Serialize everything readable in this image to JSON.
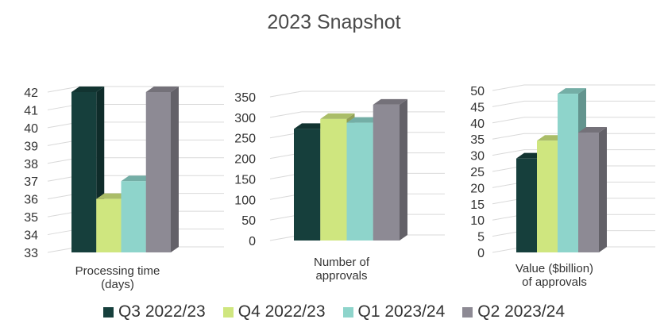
{
  "chart_data": {
    "type": "bar",
    "title": "2023 Snapshot",
    "legend_position": "bottom",
    "series": [
      {
        "name": "Q3 2022/23",
        "color": "#163f3c"
      },
      {
        "name": "Q4 2022/23",
        "color": "#cfe67f"
      },
      {
        "name": "Q1 2023/24",
        "color": "#8ed4cb"
      },
      {
        "name": "Q2 2023/24",
        "color": "#8d8a94"
      }
    ],
    "panels": [
      {
        "xlabel_lines": [
          "Processing time",
          "(days)"
        ],
        "ylim": [
          33,
          42
        ],
        "ytick_step": 1,
        "values": [
          42,
          36,
          37,
          42
        ]
      },
      {
        "xlabel_lines": [
          "Number of",
          "approvals"
        ],
        "ylim": [
          0,
          350
        ],
        "ytick_step": 50,
        "values": [
          272,
          296,
          287,
          331
        ]
      },
      {
        "xlabel_lines": [
          "Value ($billion)",
          "of approvals"
        ],
        "ylim": [
          0,
          50
        ],
        "ytick_step": 5,
        "values": [
          29,
          34.5,
          49,
          37
        ]
      }
    ],
    "grid": true
  }
}
